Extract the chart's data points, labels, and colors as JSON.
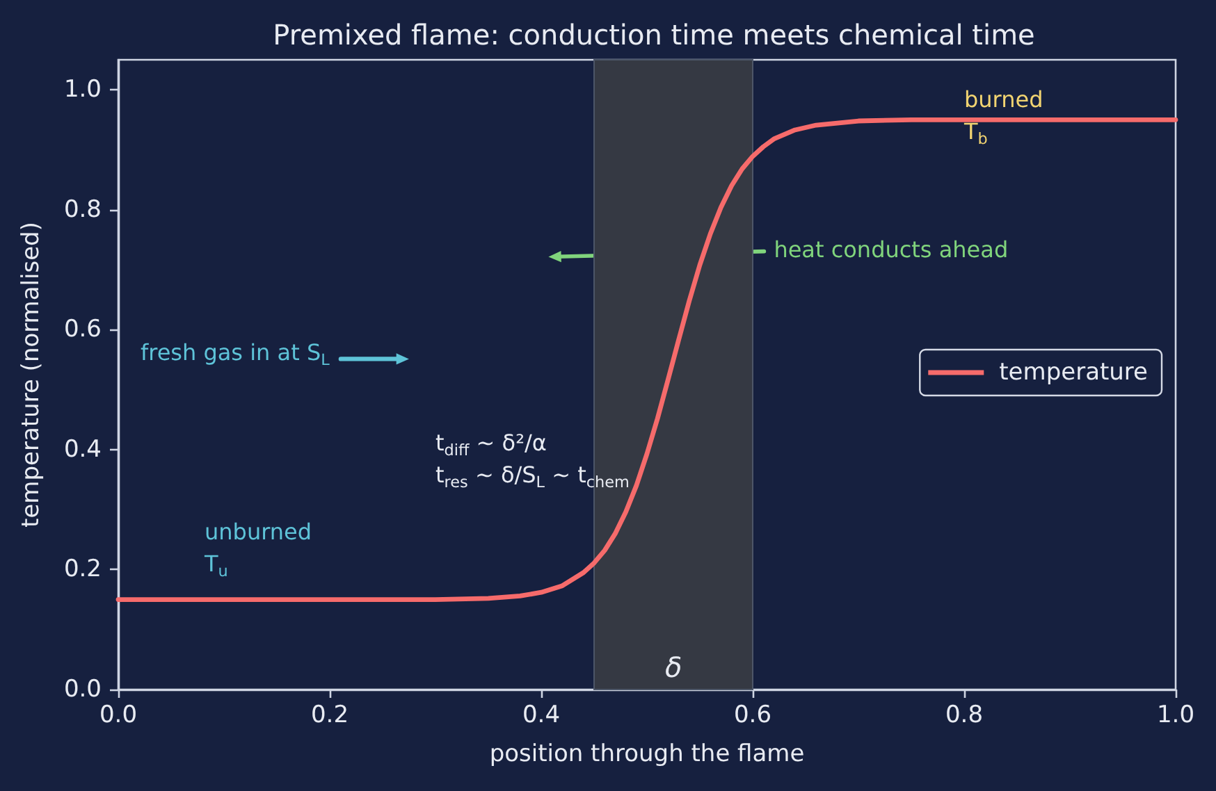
{
  "chart_data": {
    "type": "line",
    "title": "Premixed flame: conduction time meets chemical time",
    "xlabel": "position through the flame",
    "ylabel": "temperature (normalised)",
    "x": [
      0,
      0.1,
      0.2,
      0.3,
      0.35,
      0.38,
      0.4,
      0.42,
      0.44,
      0.45,
      0.46,
      0.47,
      0.48,
      0.49,
      0.5,
      0.51,
      0.52,
      0.53,
      0.54,
      0.55,
      0.56,
      0.57,
      0.58,
      0.59,
      0.6,
      0.61,
      0.62,
      0.64,
      0.66,
      0.7,
      0.75,
      0.8,
      0.9,
      1
    ],
    "series": [
      {
        "name": "temperature",
        "color": "#f66b6b",
        "values": [
          0.15,
          0.15,
          0.15,
          0.15,
          0.152,
          0.156,
          0.162,
          0.173,
          0.195,
          0.211,
          0.232,
          0.26,
          0.296,
          0.34,
          0.393,
          0.452,
          0.517,
          0.583,
          0.648,
          0.708,
          0.76,
          0.804,
          0.84,
          0.868,
          0.889,
          0.905,
          0.918,
          0.933,
          0.941,
          0.948,
          0.95,
          0.95,
          0.95,
          0.95
        ]
      }
    ],
    "xlim": [
      0,
      1
    ],
    "xticks": [
      {
        "value": 0,
        "label": "0.0"
      },
      0.2,
      0.4,
      0.6,
      0.8,
      {
        "value": 1,
        "label": "1.0"
      }
    ],
    "ylim": [
      0,
      1.05
    ],
    "yticks": [
      {
        "value": 0,
        "label": "0.0"
      },
      0.2,
      0.4,
      0.6,
      0.8,
      {
        "value": 1,
        "label": "1.0"
      }
    ],
    "bands": [
      {
        "axis": "x",
        "from": 0.45,
        "to": 0.6,
        "label": "δ",
        "color": "#353943"
      }
    ],
    "annotations": [
      "burned\nT$_{b}$",
      "unburned\nT$_{u}$",
      "fresh gas in at S$_{L}$",
      "heat conducts ahead",
      "t$_{diff}$ ~ δ²/α\nt$_{res}$ ~ δ/S$_{L}$ ~ t$_{chem}$"
    ],
    "legend": "center right"
  }
}
